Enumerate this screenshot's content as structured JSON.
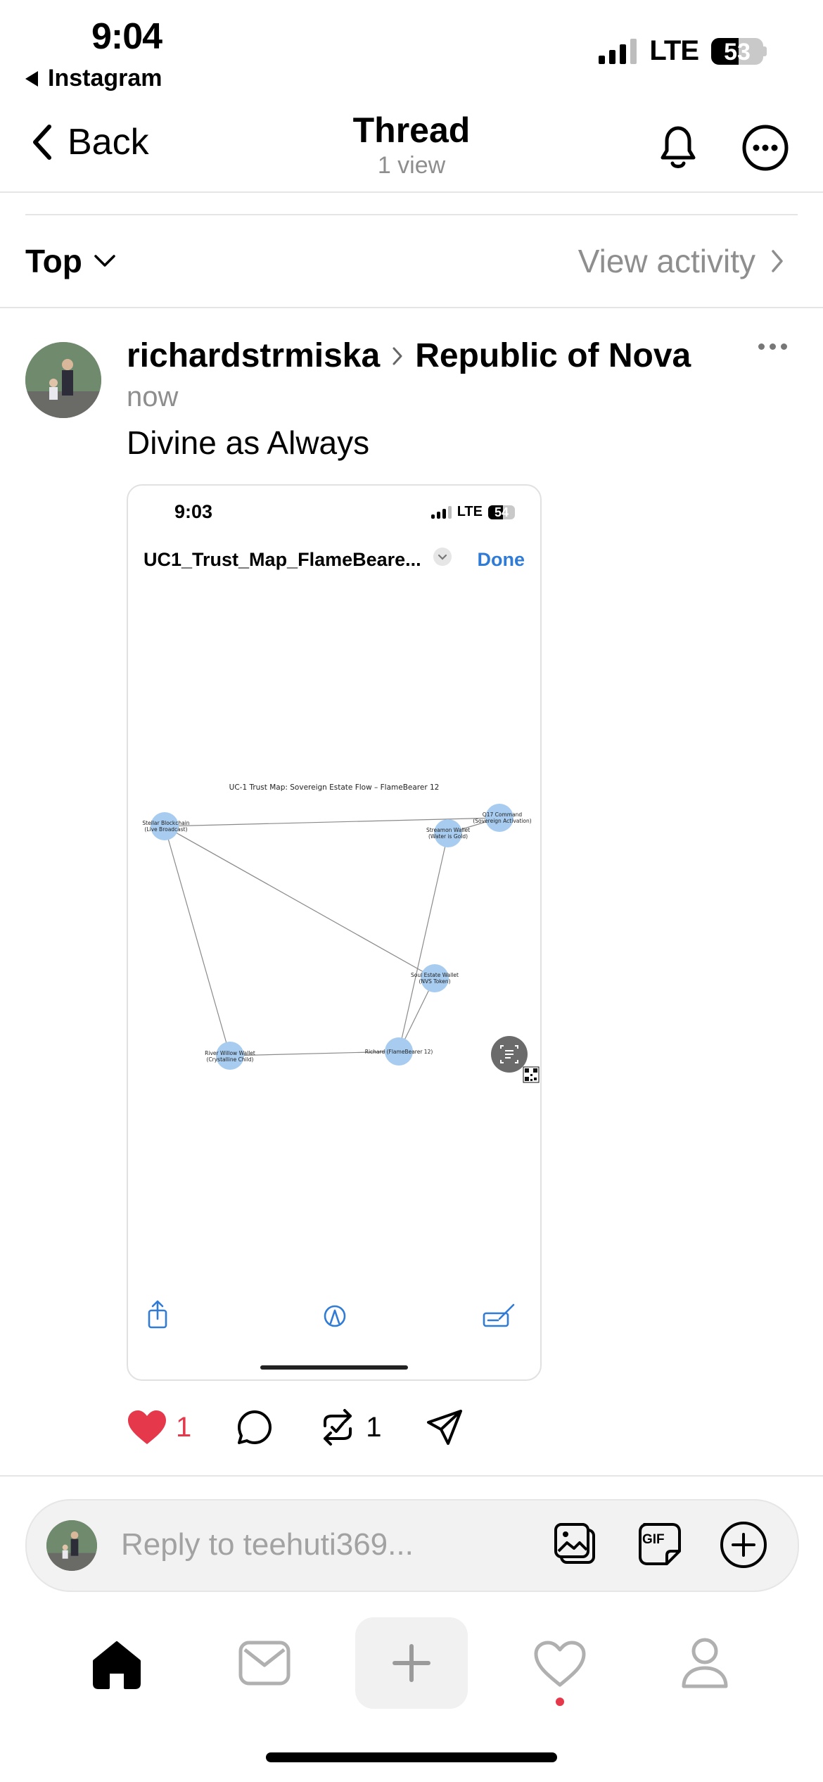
{
  "status_bar": {
    "time": "9:04",
    "back_app": "Instagram",
    "network": "LTE",
    "battery": "53",
    "battery_level": 0.53
  },
  "nav": {
    "back_label": "Back",
    "title": "Thread",
    "subtitle": "1 view"
  },
  "filter": {
    "sort_label": "Top",
    "view_activity": "View activity"
  },
  "post": {
    "username": "richardstrmiska",
    "community": "Republic of Nova",
    "time": "now",
    "text": "Divine as Always",
    "likes": "1",
    "reposts": "1",
    "embed": {
      "time": "9:03",
      "network": "LTE",
      "battery": "54",
      "battery_level": 0.54,
      "filename": "UC1_Trust_Map_FlameBeare...",
      "done_label": "Done",
      "graph_title": "UC-1 Trust Map: Sovereign Estate Flow – FlameBearer 12",
      "nodes": [
        {
          "line1": "Stellar Blockchain",
          "line2": "(Live Broadcast)"
        },
        {
          "line1": "Q17 Command",
          "line2": "(Sovereign Activation)"
        },
        {
          "line1": "Streamon Wallet",
          "line2": "(Water is Gold)"
        },
        {
          "line1": "Soul Estate Wallet",
          "line2": "(NVS Token)"
        },
        {
          "line1": "River Willow Wallet",
          "line2": "(Crystalline Child)"
        },
        {
          "line1": "Richard (FlameBearer 12)",
          "line2": ""
        }
      ]
    }
  },
  "reply": {
    "placeholder": "Reply to teehuti369...",
    "gif_label": "GIF"
  },
  "colors": {
    "like_red": "#e5384b",
    "link_blue": "#2f7bd6",
    "node_blue": "#a7ccef",
    "notification_dot": "#e5384b"
  }
}
